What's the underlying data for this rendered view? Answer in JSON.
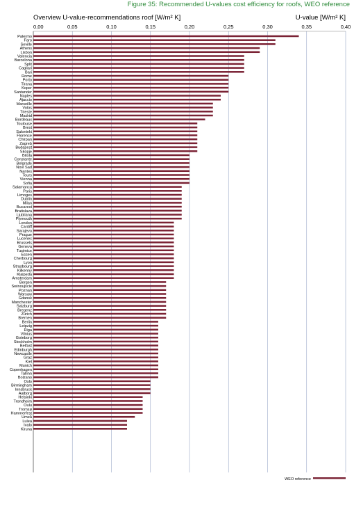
{
  "figure_caption": "Figure 35: Recommended U-values cost efficiency for roofs, WEO reference",
  "chart_data": {
    "type": "bar",
    "orientation": "horizontal",
    "title": "Overview U-value-recommendations roof [W/m² K]",
    "xlabel": "U-value [W/m² K]",
    "xlim": [
      0,
      0.4
    ],
    "ticks": [
      "0,00",
      "0,05",
      "0,10",
      "0,15",
      "0,20",
      "0,25",
      "0,30",
      "0,35",
      "0,40"
    ],
    "tick_values": [
      0,
      0.05,
      0.1,
      0.15,
      0.2,
      0.25,
      0.3,
      0.35,
      0.4
    ],
    "grid": true,
    "legend_position": "bottom-right",
    "bar_color": "#7a2234",
    "series": [
      {
        "name": "WEO reference",
        "color": "#7a2234"
      }
    ],
    "categories": [
      "Palermo",
      "Faro",
      "Seville",
      "Athens",
      "Lisbon",
      "Valencia",
      "Barcelona",
      "Split",
      "Cagliari",
      "Bari",
      "Rome",
      "Porto",
      "Tirana",
      "Koper",
      "Santander",
      "Naples",
      "Ajaccio",
      "Marseille",
      "Volos",
      "Trieste",
      "Madrid",
      "Bordeaux",
      "Toulouse",
      "Brest",
      "Saloninki",
      "Florence",
      "Chirpan",
      "Zagreb",
      "Budapest",
      "Skopje",
      "Bitola",
      "Constante",
      "Belgrade",
      "Novi Sad",
      "Nantes",
      "Tours",
      "Vienna",
      "Sofia",
      "Salamanca",
      "Paris",
      "Limoges",
      "Dublin",
      "Milan",
      "Bucarest",
      "Bratislava",
      "Ljubliana",
      "Plymouth",
      "London",
      "Cardiff",
      "Sarajevo",
      "Prague",
      "Lucenec",
      "Brussels",
      "Geneva",
      "Tusimice",
      "Essen",
      "Cherbourg",
      "Lyon",
      "Strasbourg",
      "Kilkenny",
      "Klaipeda",
      "Amsterdam",
      "Bergen",
      "Swinoujscie",
      "Poznan",
      "Warsaw",
      "Gdansk",
      "Manchester",
      "Salzburg",
      "Bregenz",
      "Zürich",
      "Bremen",
      "Berlin",
      "Leipzig",
      "Riga",
      "Vilnius",
      "Goteborg",
      "Stockholm",
      "Belfast",
      "Edinburgh",
      "Newcastle",
      "Graz",
      "Kiel",
      "Munich",
      "Copenhagen",
      "Tallinn",
      "Bolzano",
      "Oslo",
      "Birmingham",
      "Innsbruck",
      "Aalborg",
      "Helsinki",
      "Trondheim",
      "Oulu",
      "Tromsø",
      "Hammerfest",
      "Umeå",
      "Lulea",
      "Ivalo",
      "Kiruna"
    ],
    "values": [
      0.34,
      0.31,
      0.31,
      0.29,
      0.29,
      0.27,
      0.27,
      0.27,
      0.27,
      0.27,
      0.25,
      0.25,
      0.25,
      0.25,
      0.25,
      0.24,
      0.24,
      0.23,
      0.23,
      0.23,
      0.23,
      0.22,
      0.21,
      0.21,
      0.21,
      0.21,
      0.21,
      0.21,
      0.21,
      0.21,
      0.2,
      0.2,
      0.2,
      0.2,
      0.2,
      0.2,
      0.2,
      0.2,
      0.19,
      0.19,
      0.19,
      0.19,
      0.19,
      0.19,
      0.19,
      0.19,
      0.19,
      0.18,
      0.18,
      0.18,
      0.18,
      0.18,
      0.18,
      0.18,
      0.18,
      0.18,
      0.18,
      0.18,
      0.18,
      0.18,
      0.18,
      0.18,
      0.17,
      0.17,
      0.17,
      0.17,
      0.17,
      0.17,
      0.17,
      0.17,
      0.17,
      0.17,
      0.16,
      0.16,
      0.16,
      0.16,
      0.16,
      0.16,
      0.16,
      0.16,
      0.16,
      0.16,
      0.16,
      0.16,
      0.16,
      0.16,
      0.16,
      0.15,
      0.15,
      0.15,
      0.15,
      0.14,
      0.14,
      0.14,
      0.14,
      0.14,
      0.13,
      0.12,
      0.12,
      0.12
    ]
  }
}
